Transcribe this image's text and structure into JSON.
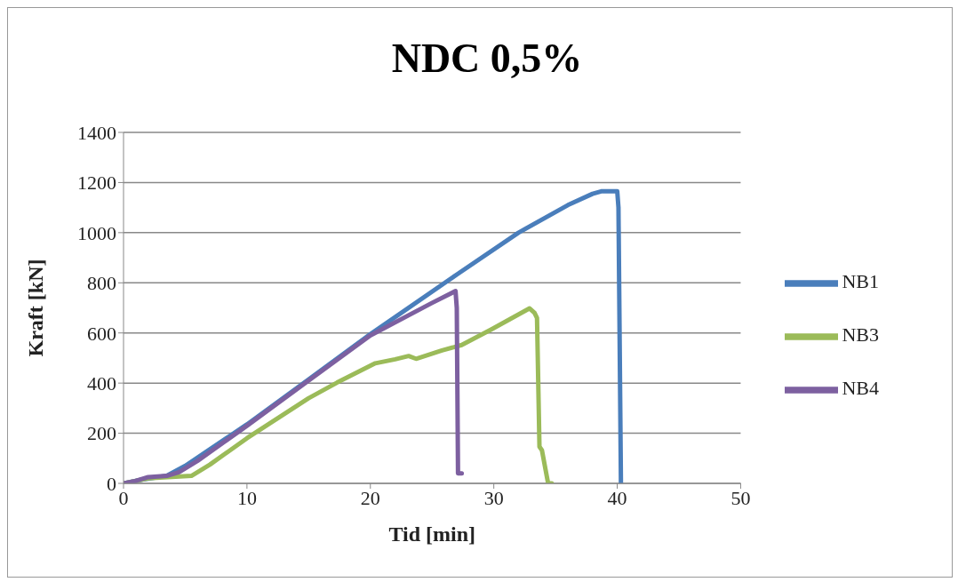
{
  "chart_data": {
    "type": "line",
    "title": "NDC 0,5%",
    "xlabel": "Tid [min]",
    "ylabel": "Kraft [kN]",
    "xlim": [
      0,
      50
    ],
    "xticks": [
      0,
      10,
      20,
      30,
      40,
      50
    ],
    "ylim": [
      0,
      1400
    ],
    "yticks": [
      0,
      200,
      400,
      600,
      800,
      1000,
      1200,
      1400
    ],
    "grid": "y",
    "legend": "right",
    "marker": "none",
    "line_style": "solid",
    "series": [
      {
        "name": "NB1",
        "color": "#4a7ebb",
        "x": [
          0,
          1.5,
          3.5,
          5,
          10,
          15,
          20,
          27,
          32,
          36,
          38,
          38.7,
          40,
          40.1,
          40.3
        ],
        "values": [
          0,
          15,
          30,
          70,
          235,
          415,
          595,
          833,
          1000,
          1110,
          1155,
          1165,
          1165,
          1100,
          0
        ]
      },
      {
        "name": "NB3",
        "color": "#9bbb59",
        "x": [
          0,
          2,
          5.5,
          7,
          10,
          15,
          17.3,
          20.4,
          22,
          23.1,
          23.7,
          25.8,
          27.4,
          29.8,
          32.9,
          33.3,
          33.5,
          33.7,
          33.9,
          34.4,
          34.7
        ],
        "values": [
          0,
          20,
          30,
          75,
          180,
          340,
          402,
          479,
          495,
          508,
          497,
          530,
          552,
          614,
          698,
          680,
          660,
          146,
          132,
          0,
          0
        ]
      },
      {
        "name": "NB4",
        "color": "#7d60a0",
        "x": [
          0,
          1,
          2,
          3.5,
          4.5,
          6,
          10,
          15,
          20,
          25,
          26.9,
          27,
          27.1,
          27.4
        ],
        "values": [
          0,
          10,
          25,
          30,
          45,
          90,
          230,
          410,
          590,
          720,
          767,
          700,
          40,
          40
        ]
      }
    ]
  }
}
